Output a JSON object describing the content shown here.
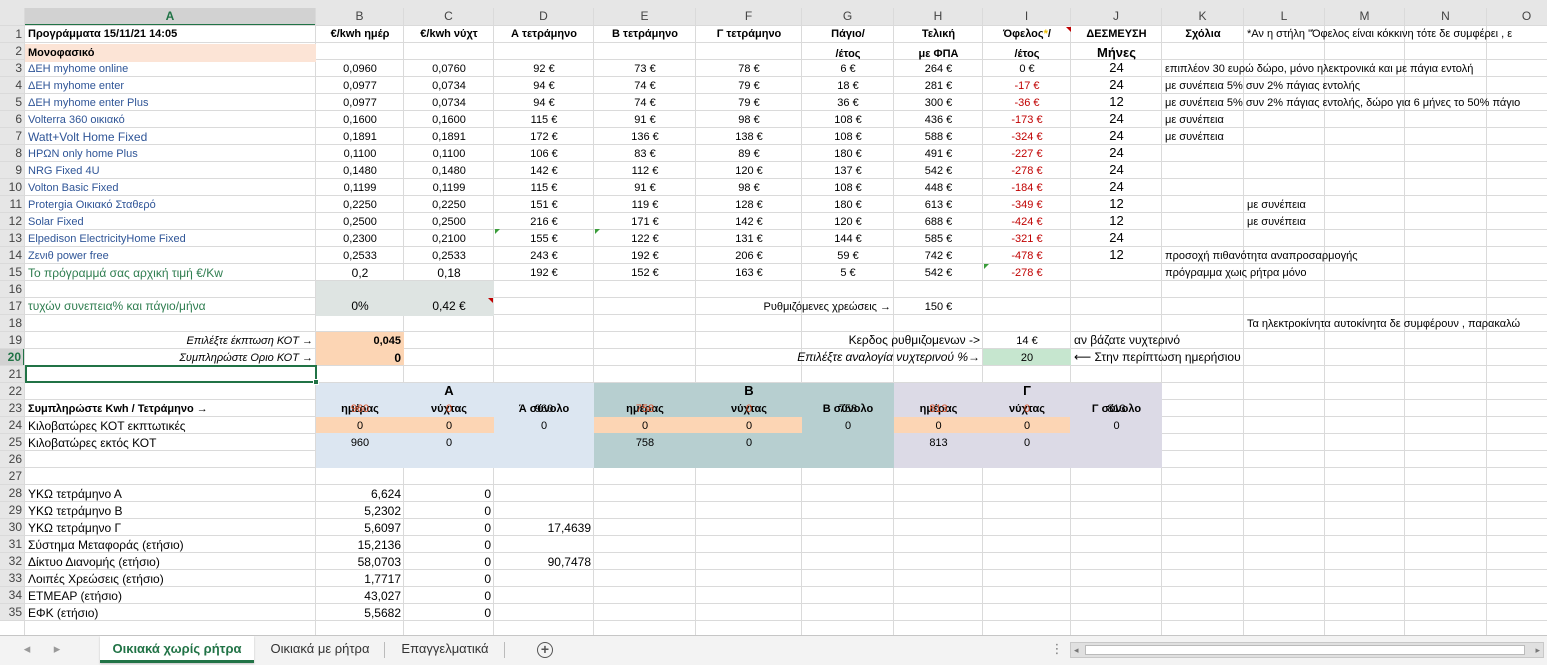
{
  "columns": [
    "A",
    "B",
    "C",
    "D",
    "E",
    "F",
    "G",
    "H",
    "I",
    "J",
    "K",
    "L",
    "M",
    "N",
    "O"
  ],
  "rows": [
    "1",
    "2",
    "3",
    "4",
    "5",
    "6",
    "7",
    "8",
    "9",
    "10",
    "11",
    "12",
    "13",
    "14",
    "15",
    "16",
    "17",
    "18",
    "19",
    "20",
    "21",
    "22",
    "23",
    "24",
    "25",
    "26",
    "27",
    "28",
    "29",
    "30",
    "31",
    "32",
    "33",
    "34",
    "35"
  ],
  "header_row1": {
    "a": "Προγράμματα  15/11/21 14:05",
    "b": "€/kwh ημέρ",
    "c": "€/kwh νύχτ",
    "d": "Α τετράμηνο",
    "e": "Β τετράμηνο",
    "f": "Γ τετράμηνο",
    "g": "Πάγιο/",
    "h": "Τελική",
    "i": "Όφελος",
    "i_star": "*",
    "i_slash": "/",
    "j": "ΔΕΣΜΕΥΣΗ",
    "k": "Σχόλια",
    "l": "*Αν η στήλη \"Όφελος είναι κόκκινη τότε δε συμφέρει , ε"
  },
  "header_row2": {
    "a": "Μονοφασικό",
    "g": "/έτος",
    "h": "με ΦΠΑ",
    "i": "/έτος",
    "j": "Μήνες"
  },
  "plans": [
    {
      "name": "ΔΕΗ myhome online",
      "day": "0,0960",
      "night": "0,0760",
      "a": "92 €",
      "b": "73 €",
      "c": "78 €",
      "fee": "6 €",
      "total": "264 €",
      "benefit": "0 €",
      "commit": "24",
      "comment": "επιπλέον 30 ευρώ δώρο, μόνο ηλεκτρονικά και με πάγια εντολή"
    },
    {
      "name": "ΔΕΗ myhome enter",
      "day": "0,0977",
      "night": "0,0734",
      "a": "94 €",
      "b": "74 €",
      "c": "79 €",
      "fee": "18 €",
      "total": "281 €",
      "benefit": "-17 €",
      "commit": "24",
      "comment": "με συνέπεια 5% συν 2% πάγιας εντολής"
    },
    {
      "name": "ΔΕΗ myhome enter Plus",
      "day": "0,0977",
      "night": "0,0734",
      "a": "94 €",
      "b": "74 €",
      "c": "79 €",
      "fee": "36 €",
      "total": "300 €",
      "benefit": "-36 €",
      "commit": "12",
      "comment": "με συνέπεια 5% συν 2% πάγιας εντολής, δώρο για 6 μήνες το 50% πάγιο"
    },
    {
      "name": "Volterra 360 οικιακό",
      "day": "0,1600",
      "night": "0,1600",
      "a": "115 €",
      "b": "91 €",
      "c": "98 €",
      "fee": "108 €",
      "total": "436 €",
      "benefit": "-173 €",
      "commit": "24",
      "comment": "με συνέπεια"
    },
    {
      "name": "Watt+Volt Home Fixed",
      "day": "0,1891",
      "night": "0,1891",
      "a": "172 €",
      "b": "136 €",
      "c": "138 €",
      "fee": "108 €",
      "total": "588 €",
      "benefit": "-324 €",
      "commit": "24",
      "comment": "με συνέπεια"
    },
    {
      "name": "ΗΡΩΝ only home Plus",
      "day": "0,1100",
      "night": "0,1100",
      "a": "106 €",
      "b": "83 €",
      "c": "89 €",
      "fee": "180 €",
      "total": "491 €",
      "benefit": "-227 €",
      "commit": "24",
      "comment": ""
    },
    {
      "name": "NRG Fixed 4U",
      "day": "0,1480",
      "night": "0,1480",
      "a": "142 €",
      "b": "112 €",
      "c": "120 €",
      "fee": "137 €",
      "total": "542 €",
      "benefit": "-278 €",
      "commit": "24",
      "comment": ""
    },
    {
      "name": "Volton Basic Fixed",
      "day": "0,1199",
      "night": "0,1199",
      "a": "115 €",
      "b": "91 €",
      "c": "98 €",
      "fee": "108 €",
      "total": "448 €",
      "benefit": "-184 €",
      "commit": "24",
      "comment": ""
    },
    {
      "name": "Protergia Οικιακό Σταθερό",
      "day": "0,2250",
      "night": "0,2250",
      "a": "151 €",
      "b": "119 €",
      "c": "128 €",
      "fee": "180 €",
      "total": "613 €",
      "benefit": "-349 €",
      "commit": "12",
      "comment": "με συνέπεια"
    },
    {
      "name": "Solar Fixed",
      "day": "0,2500",
      "night": "0,2500",
      "a": "216 €",
      "b": "171 €",
      "c": "142 €",
      "fee": "120 €",
      "total": "688 €",
      "benefit": "-424 €",
      "commit": "12",
      "comment": "με συνέπεια"
    },
    {
      "name": "Elpedison ElectricityHome Fixed",
      "day": "0,2300",
      "night": "0,2100",
      "a": "155 €",
      "b": "122 €",
      "c": "131 €",
      "fee": "144 €",
      "total": "585 €",
      "benefit": "-321 €",
      "commit": "24",
      "comment": ""
    },
    {
      "name": "Ζενιθ power free",
      "day": "0,2533",
      "night": "0,2533",
      "a": "243 €",
      "b": "192 €",
      "c": "206 €",
      "fee": "59 €",
      "total": "742 €",
      "benefit": "-478 €",
      "commit": "12",
      "comment": "προσοχή πιθανότητα αναπροσαρμογής"
    },
    {
      "name": "Το πρόγραμμά σας αρχική τιμή €/Kw",
      "day": "0,2",
      "night": "0,18",
      "a": "192 €",
      "b": "152 €",
      "c": "163 €",
      "fee": "5 €",
      "total": "542 €",
      "benefit": "-278 €",
      "commit": "",
      "comment": "πρόγραμμα χωις ρήτρα μόνο"
    }
  ],
  "row16": {
    "a": "τυχών συνεπεια% και πάγιο/μήνα",
    "b": "0%",
    "c": "0,42 €",
    "g": "Ρυθμιζόμενες  χρεώσεις →",
    "h": "150 €"
  },
  "row17": {
    "k": "Τα ηλεκτροκίνητα αυτοκίνητα δε συμφέρουν , παρακαλώ"
  },
  "row18": {
    "a": "Επιλέξτε  έκπτωση ΚΟΤ →",
    "b": "0,045",
    "g": "Κερδος ρυθμιζομενων ->",
    "h": "14 €",
    "i": "αν βάζατε νυχτερινό"
  },
  "row19": {
    "a": "Συμπληρώστε Οριο ΚΟΤ →",
    "b": "0",
    "g": "Επιλέξτε αναλογία νυχτερινού %→",
    "h": "20",
    "i": "⟵ Στην περίπτωση ημερήσιου"
  },
  "quarters": {
    "a_title": "Α",
    "b_title": "Β",
    "c_title": "Γ",
    "day": "ημέρας",
    "night": "νύχτας",
    "a_total": "Ά σύνολο",
    "b_total": "Β σύνολο",
    "c_total": "Γ σύνολο"
  },
  "row23": {
    "label": "Συμπληρώστε Kwh / Τετράμηνο →",
    "vals": [
      "960",
      "0",
      "960",
      "758",
      "0",
      "758",
      "813",
      "0",
      "813"
    ]
  },
  "row24": {
    "label": "Κιλοβατώρες ΚΟΤ εκπτωτικές",
    "vals": [
      "0",
      "0",
      "0",
      "0",
      "0",
      "0",
      "0",
      "0",
      "0"
    ]
  },
  "row25": {
    "label": "Κιλοβατώρες εκτός ΚΟΤ",
    "vals": [
      "960",
      "0",
      "",
      "758",
      "0",
      "",
      "813",
      "0",
      ""
    ]
  },
  "bottom": [
    {
      "a": "ΥΚΩ τετράμηνο Α",
      "b": "6,624",
      "c": "0",
      "d": ""
    },
    {
      "a": "ΥΚΩ τετράμηνο Β",
      "b": "5,2302",
      "c": "0",
      "d": ""
    },
    {
      "a": "ΥΚΩ τετράμηνο Γ",
      "b": "5,6097",
      "c": "0",
      "d": "17,4639"
    },
    {
      "a": "Σύστημα Μεταφοράς (ετήσιο)",
      "b": "15,2136",
      "c": "0",
      "d": ""
    },
    {
      "a": "Δίκτυο Διανομής (ετήσιο)",
      "b": "58,0703",
      "c": "0",
      "d": "90,7478"
    },
    {
      "a": "Λοιπές Χρεώσεις (ετήσιο)",
      "b": "1,7717",
      "c": "0",
      "d": ""
    },
    {
      "a": "ΕΤΜΕΑΡ (ετήσιο)",
      "b": "43,027",
      "c": "0",
      "d": ""
    },
    {
      "a": "ΕΦΚ (ετήσιο)",
      "b": "5,5682",
      "c": "0",
      "d": ""
    }
  ],
  "tabs": [
    "Οικιακά χωρίς ρήτρα",
    "Οικιακά με ρήτρα",
    "Επαγγελματικά"
  ],
  "tab_add": "+",
  "nav_prev": "◂",
  "nav_next": "▸",
  "more": "⋮",
  "colors": {
    "accent": "#217346",
    "orange_fill": "#fcd5b4",
    "blue_fill": "#dce6f1",
    "teal_fill": "#b7d0d0",
    "lilac_fill": "#dcdae6",
    "green_fill": "#c6e6cf"
  }
}
